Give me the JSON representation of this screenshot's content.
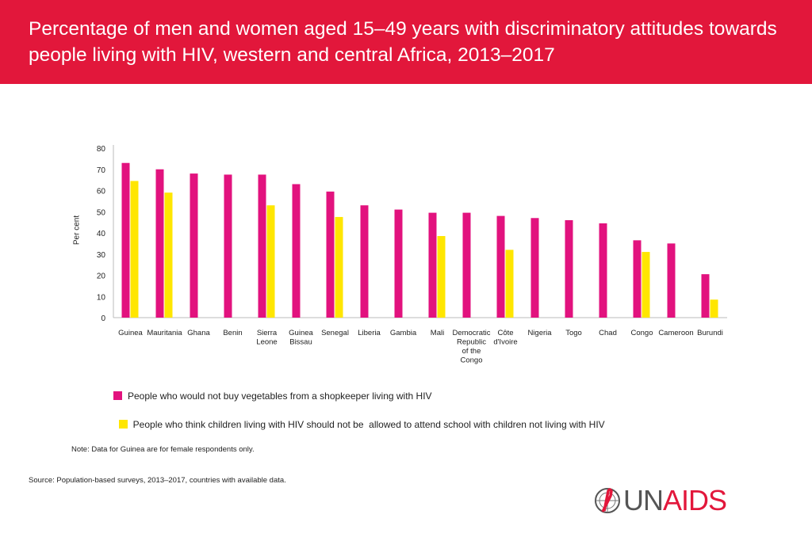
{
  "title": "Percentage of men and women aged 15–49 years with discriminatory attitudes towards people living with HIV, western and central Africa, 2013–2017",
  "note": "Note: Data for Guinea are for female respondents only.",
  "source": {
    "label": "Source:",
    "text": " Population-based surveys, 2013–2017, countries with available data."
  },
  "logo": {
    "part1": "UN",
    "part2": "AIDS",
    "icon": "un-emblem-ribbon-icon"
  },
  "colors": {
    "header": "#e2173b",
    "series1": "#e2127e",
    "series2": "#ffe600"
  },
  "chart_data": {
    "type": "bar",
    "ylabel": "Per cent",
    "ylim": [
      0,
      80
    ],
    "yticks": [
      0,
      10,
      20,
      30,
      40,
      50,
      60,
      70,
      80
    ],
    "grid": false,
    "legend_position": "bottom",
    "categories": [
      [
        "Guinea"
      ],
      [
        "Mauritania"
      ],
      [
        "Ghana"
      ],
      [
        "Benin"
      ],
      [
        "Sierra",
        "Leone"
      ],
      [
        "Guinea",
        "Bissau"
      ],
      [
        "Senegal"
      ],
      [
        "Liberia"
      ],
      [
        "Gambia"
      ],
      [
        "Mali"
      ],
      [
        "Democratic",
        "Republic",
        "of the",
        "Congo"
      ],
      [
        "Côte",
        "d'Ivoire"
      ],
      [
        "Nigeria"
      ],
      [
        "Togo"
      ],
      [
        "Chad"
      ],
      [
        "Congo"
      ],
      [
        "Cameroon"
      ],
      [
        "Burundi"
      ]
    ],
    "series": [
      {
        "name": "People who would not buy vegetables from a shopkeeper living with HIV",
        "values": [
          73,
          70,
          68,
          67.5,
          67.5,
          63,
          59.5,
          53,
          51,
          49.5,
          49.5,
          48,
          47,
          46,
          44.5,
          36.5,
          35,
          20.5
        ]
      },
      {
        "name": "People who think children living with HIV should not be  allowed to attend school with children not living with HIV",
        "values": [
          64.5,
          59,
          null,
          null,
          53,
          null,
          47.5,
          null,
          null,
          38.5,
          null,
          32,
          null,
          null,
          null,
          31,
          null,
          8.5
        ]
      }
    ]
  }
}
